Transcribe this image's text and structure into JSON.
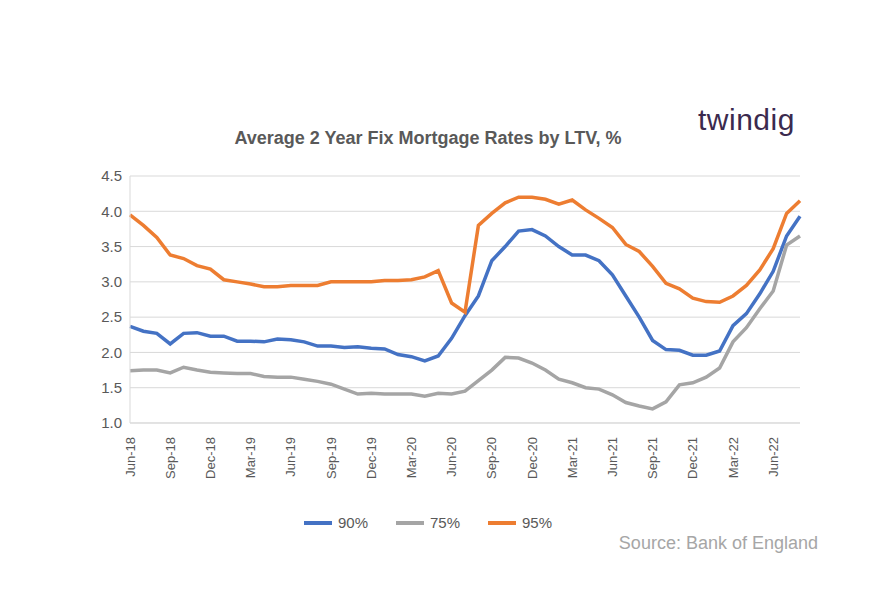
{
  "chart_data": {
    "type": "line",
    "title": "Average 2 Year Fix Mortgage Rates by LTV, %",
    "logo": "twindig",
    "source": "Source: Bank of England",
    "categories": [
      "Jun-18",
      null,
      null,
      "Sep-18",
      null,
      null,
      "Dec-18",
      null,
      null,
      "Mar-19",
      null,
      null,
      "Jun-19",
      null,
      null,
      "Sep-19",
      null,
      null,
      "Dec-19",
      null,
      null,
      "Mar-20",
      null,
      null,
      "Jun-20",
      null,
      null,
      "Sep-20",
      null,
      null,
      "Dec-20",
      null,
      null,
      "Mar-21",
      null,
      null,
      "Jun-21",
      null,
      null,
      "Sep-21",
      null,
      null,
      "Dec-21",
      null,
      null,
      "Mar-22",
      null,
      null,
      "Jun-22",
      null,
      null
    ],
    "series": [
      {
        "name": "90%",
        "color": "#4472c4",
        "values": [
          2.37,
          2.3,
          2.27,
          2.12,
          2.27,
          2.28,
          2.23,
          2.23,
          2.16,
          2.16,
          2.15,
          2.19,
          2.18,
          2.15,
          2.09,
          2.09,
          2.07,
          2.08,
          2.06,
          2.05,
          1.97,
          1.94,
          1.88,
          1.95,
          2.2,
          2.52,
          2.8,
          3.3,
          3.5,
          3.72,
          3.74,
          3.65,
          3.5,
          3.38,
          3.38,
          3.3,
          3.1,
          2.8,
          2.5,
          2.17,
          2.04,
          2.03,
          1.96,
          1.96,
          2.02,
          2.38,
          2.55,
          2.83,
          3.15,
          3.65,
          3.93
        ]
      },
      {
        "name": "75%",
        "color": "#a5a5a5",
        "values": [
          1.74,
          1.75,
          1.75,
          1.71,
          1.79,
          1.75,
          1.72,
          1.71,
          1.7,
          1.7,
          1.66,
          1.65,
          1.65,
          1.62,
          1.59,
          1.55,
          1.48,
          1.41,
          1.42,
          1.41,
          1.41,
          1.41,
          1.38,
          1.42,
          1.41,
          1.45,
          1.6,
          1.75,
          1.93,
          1.92,
          1.85,
          1.75,
          1.62,
          1.57,
          1.5,
          1.48,
          1.4,
          1.29,
          1.24,
          1.2,
          1.3,
          1.54,
          1.57,
          1.65,
          1.78,
          2.15,
          2.35,
          2.62,
          2.87,
          3.52,
          3.65
        ]
      },
      {
        "name": "95%",
        "color": "#ed7d31",
        "values": [
          3.95,
          3.8,
          3.63,
          3.38,
          3.33,
          3.23,
          3.18,
          3.03,
          3.0,
          2.97,
          2.93,
          2.93,
          2.95,
          2.95,
          2.95,
          3.0,
          3.0,
          3.0,
          3.0,
          3.02,
          3.02,
          3.03,
          3.07,
          3.16,
          2.7,
          2.57,
          3.8,
          3.97,
          4.12,
          4.2,
          4.2,
          4.17,
          4.1,
          4.16,
          4.02,
          3.9,
          3.77,
          3.53,
          3.43,
          3.22,
          2.98,
          2.9,
          2.77,
          2.72,
          2.71,
          2.8,
          2.95,
          3.17,
          3.47,
          3.97,
          4.15
        ]
      }
    ],
    "ylim": [
      1,
      4.5
    ],
    "yticks": [
      {
        "value": 1,
        "label": "1.0"
      },
      {
        "value": 1.5,
        "label": "1.5"
      },
      {
        "value": 2,
        "label": "2.0"
      },
      {
        "value": 2.5,
        "label": "2.5"
      },
      {
        "value": 3,
        "label": "3.0"
      },
      {
        "value": 3.5,
        "label": "3.5"
      },
      {
        "value": 4,
        "label": "4.0"
      },
      {
        "value": 4.5,
        "label": "4.5"
      }
    ],
    "grid": true,
    "legend": "bottom"
  }
}
